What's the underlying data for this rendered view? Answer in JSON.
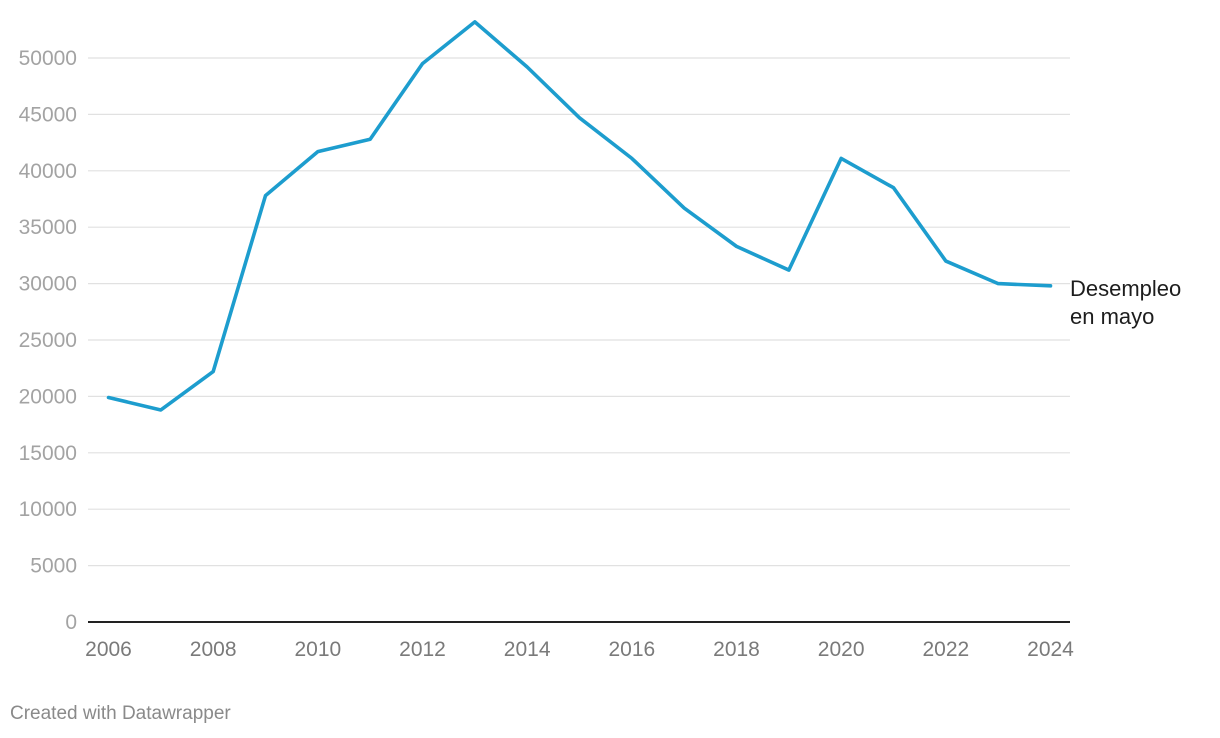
{
  "chart_data": {
    "type": "line",
    "x": [
      2006,
      2007,
      2008,
      2009,
      2010,
      2011,
      2012,
      2013,
      2014,
      2015,
      2016,
      2017,
      2018,
      2019,
      2020,
      2021,
      2022,
      2023,
      2024
    ],
    "series": [
      {
        "name": "Desempleo en mayo",
        "name_lines": [
          "Desempleo",
          "en mayo"
        ],
        "color": "#1d9dce",
        "values": [
          19900,
          18800,
          22200,
          37800,
          41700,
          42800,
          49500,
          53200,
          49200,
          44700,
          41100,
          36700,
          33300,
          31200,
          41100,
          38500,
          32000,
          30000,
          29800
        ]
      }
    ],
    "xticks": [
      "2006",
      "2008",
      "2010",
      "2012",
      "2014",
      "2016",
      "2018",
      "2020",
      "2022",
      "2024"
    ],
    "yticks": [
      "0",
      "5000",
      "10000",
      "15000",
      "20000",
      "25000",
      "30000",
      "35000",
      "40000",
      "45000",
      "50000"
    ],
    "ylim": [
      0,
      50000
    ],
    "xlim": [
      2006,
      2024
    ],
    "title": "",
    "xlabel": "",
    "ylabel": "",
    "grid": "horizontal",
    "legend": "direct label at line end"
  },
  "footer": {
    "credit": "Created with Datawrapper"
  }
}
